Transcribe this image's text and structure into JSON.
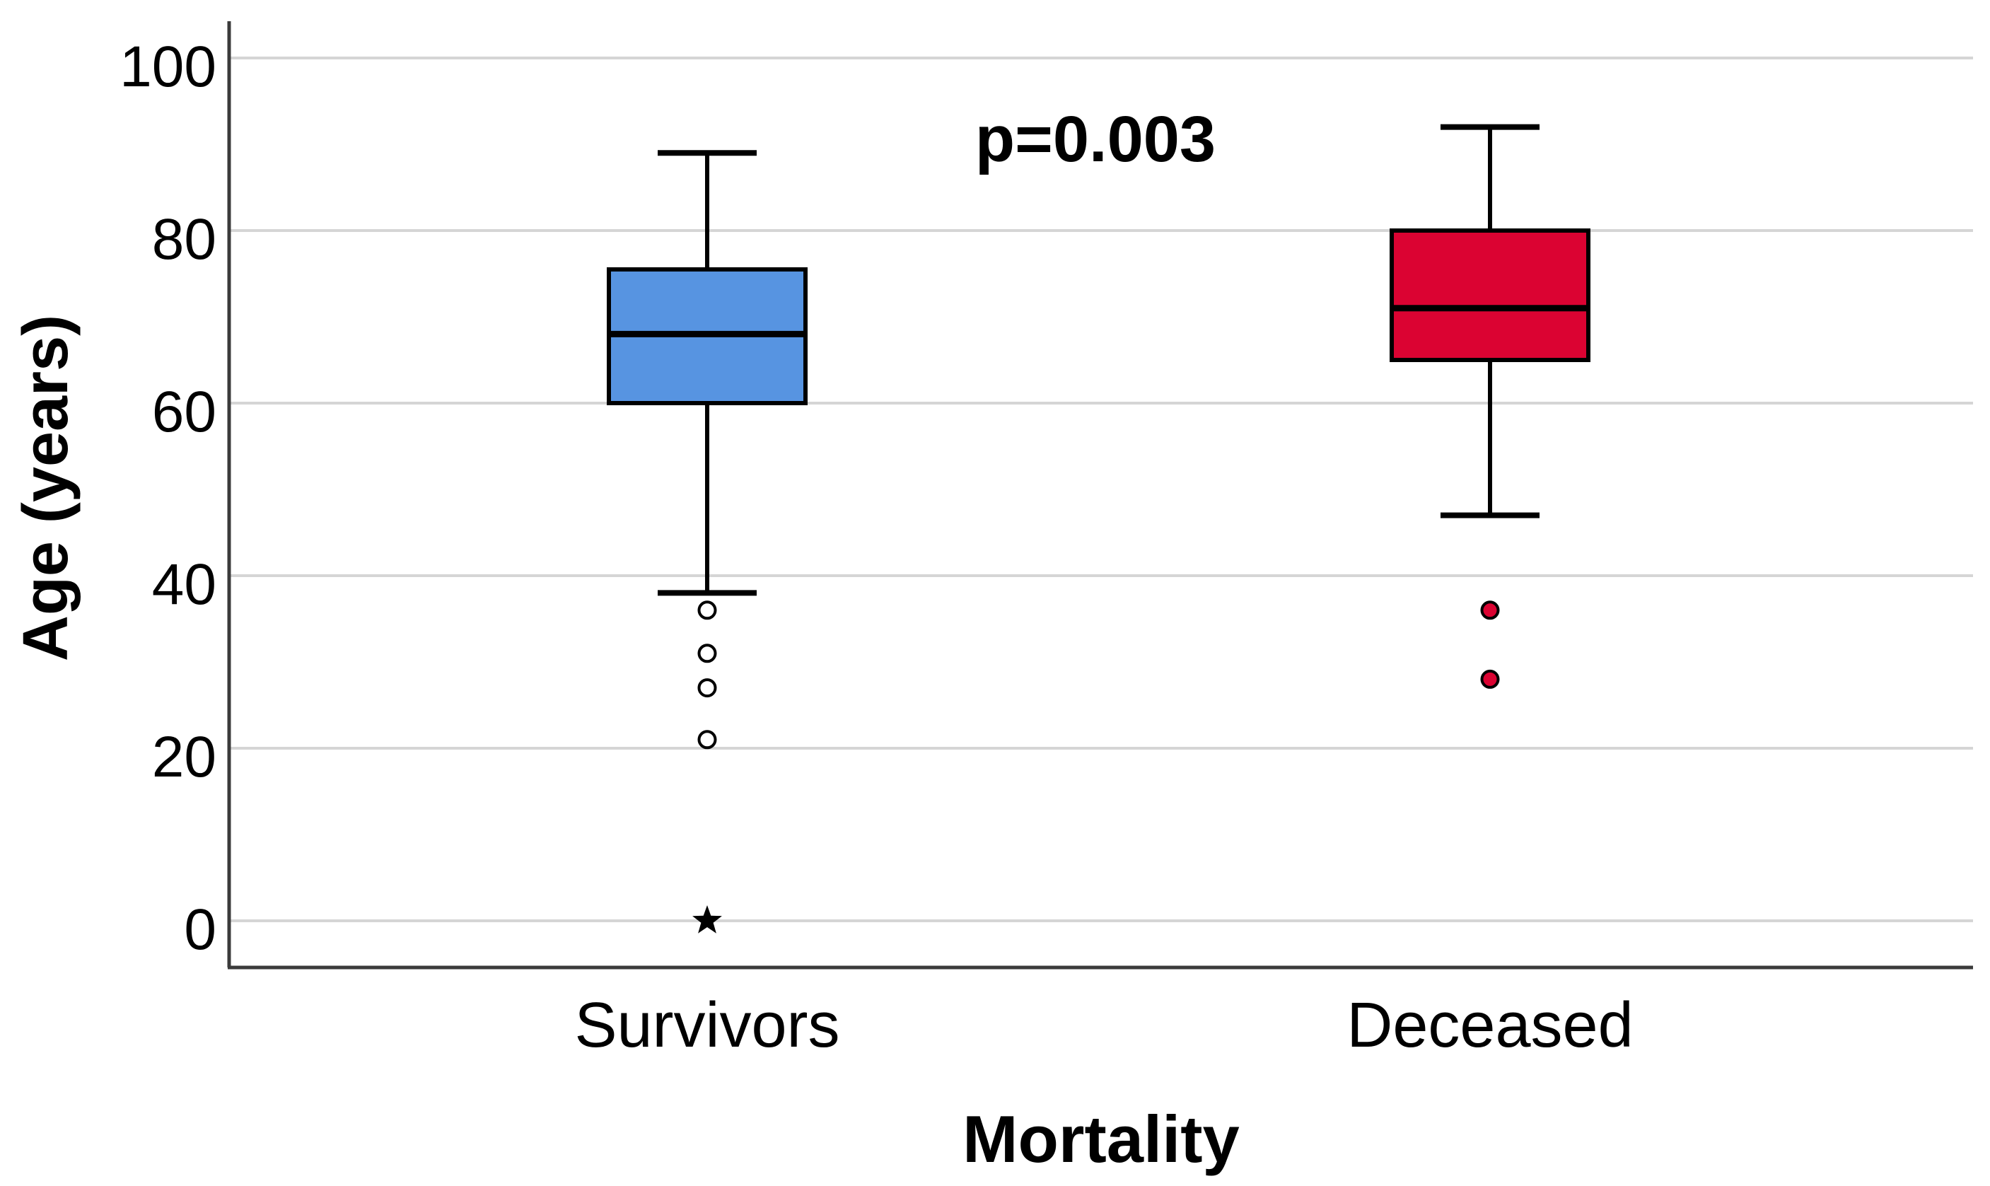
{
  "chart_data": {
    "type": "boxplot",
    "title": "",
    "annotation": "p=0.003",
    "xlabel": "Mortality",
    "ylabel": "Age (years)",
    "categories": [
      "Survivors",
      "Deceased"
    ],
    "y_ticks": [
      0,
      20,
      40,
      60,
      80,
      100
    ],
    "ylim": [
      -5.5,
      104
    ],
    "grid": true,
    "legend": "none",
    "series": [
      {
        "name": "Survivors",
        "box_color": "#5794E1",
        "whisker_low": 38,
        "q1": 60,
        "median": 68,
        "q3": 75.5,
        "whisker_high": 89,
        "outliers": [
          36,
          31,
          27,
          21
        ],
        "outlier_marker": "circle-open",
        "extremes": [
          0
        ],
        "extreme_marker": "star"
      },
      {
        "name": "Deceased",
        "box_color": "#DB0332",
        "whisker_low": 47,
        "q1": 65,
        "median": 71,
        "q3": 80,
        "whisker_high": 92,
        "outliers": [
          36,
          28
        ],
        "outlier_marker": "circle-filled",
        "extremes": [],
        "extreme_marker": "star"
      }
    ],
    "colors": {
      "survivors_fill": "#5794E1",
      "deceased_fill": "#DB0332",
      "gridline": "#D5D5D5",
      "axis_line": "#3B3B3B",
      "box_stroke": "#000000",
      "text": "#000000"
    }
  }
}
